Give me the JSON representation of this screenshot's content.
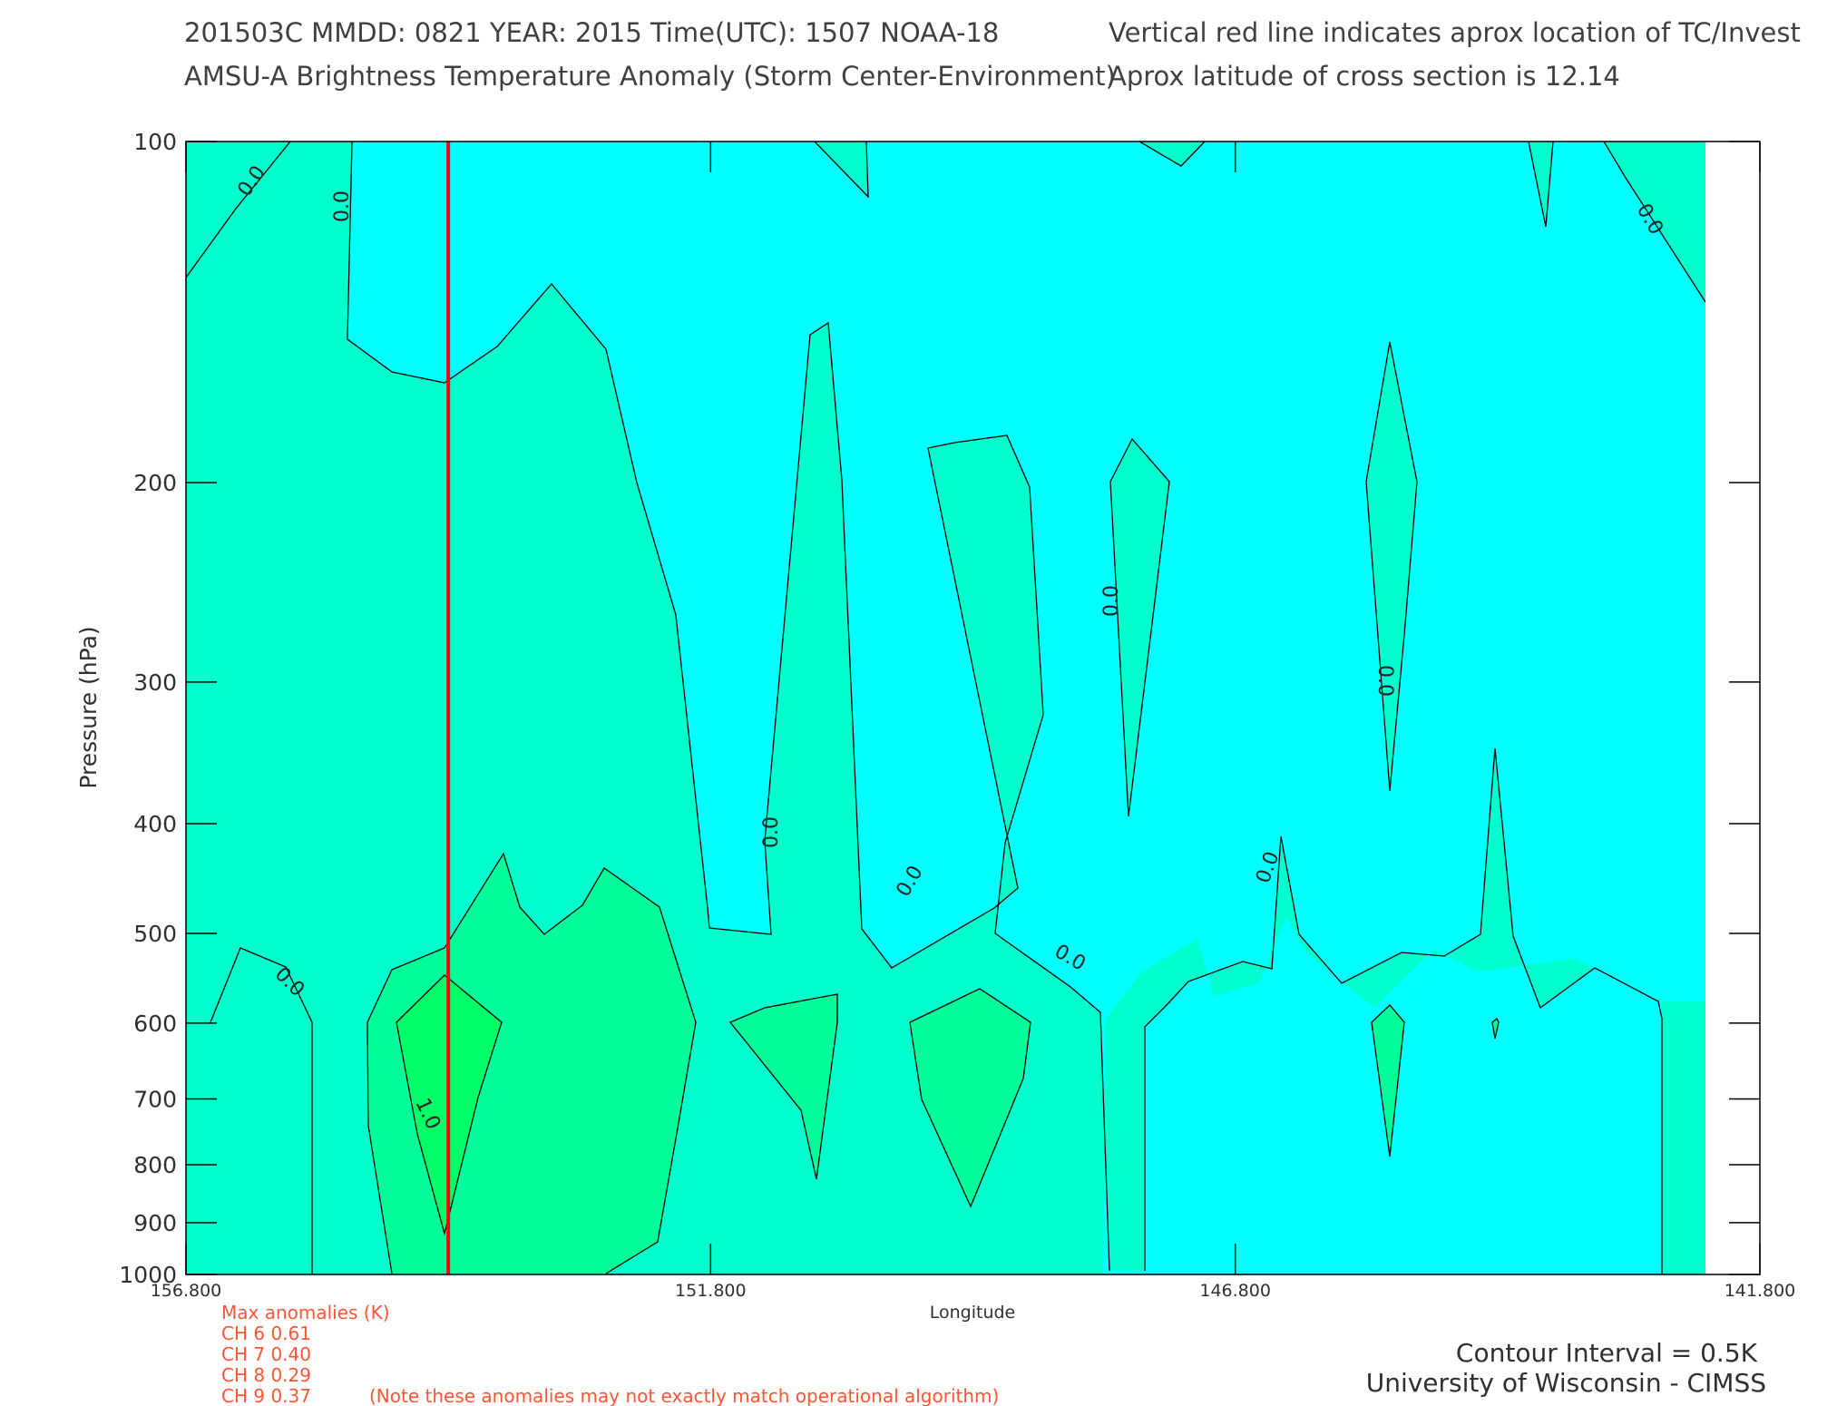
{
  "header": {
    "line1_left": "201503C  MMDD: 0821 YEAR: 2015 Time(UTC): 1507 NOAA-18",
    "line1_right": "Vertical red line indicates aprox location of TC/Invest",
    "line2_left": "AMSU-A Brightness Temperature Anomaly (Storm Center-Environment)",
    "line2_right": "Aprox latitude of cross section is 12.14"
  },
  "chart_data": {
    "type": "contour",
    "xlabel": "Longitude",
    "ylabel": "Pressure (hPa)",
    "xlim": [
      156.8,
      141.8
    ],
    "ylim": [
      1000,
      100
    ],
    "y_scale": "log",
    "x_ticks": [
      "156.800",
      "151.800",
      "146.800",
      "141.800"
    ],
    "y_ticks": [
      100,
      200,
      300,
      400,
      500,
      600,
      700,
      800,
      900,
      1000
    ],
    "storm_longitude": 154.3,
    "colors": {
      "background_fill": "#00ffff",
      "level_0": "#00ffcc",
      "level_0_5": "#00ff99",
      "level_1": "#00ff66",
      "storm_line": "#ff0000",
      "contour_line": "#000000"
    },
    "contour_labels": [
      "0.0",
      "0.0",
      "0.0",
      "0.0",
      "0.0",
      "0.0",
      "0.0",
      "0.0",
      "0.0",
      "0.0",
      "1.0"
    ],
    "contour_interval_text": "Contour Interval = 0.5K",
    "credit": "University of Wisconsin - CIMSS"
  },
  "anomalies": {
    "title": "Max anomalies (K)",
    "rows": [
      "CH 6  0.61",
      "CH 7  0.40",
      "CH 8  0.29",
      "CH 9  0.37"
    ],
    "note": "(Note these anomalies may not exactly match operational algorithm)"
  }
}
